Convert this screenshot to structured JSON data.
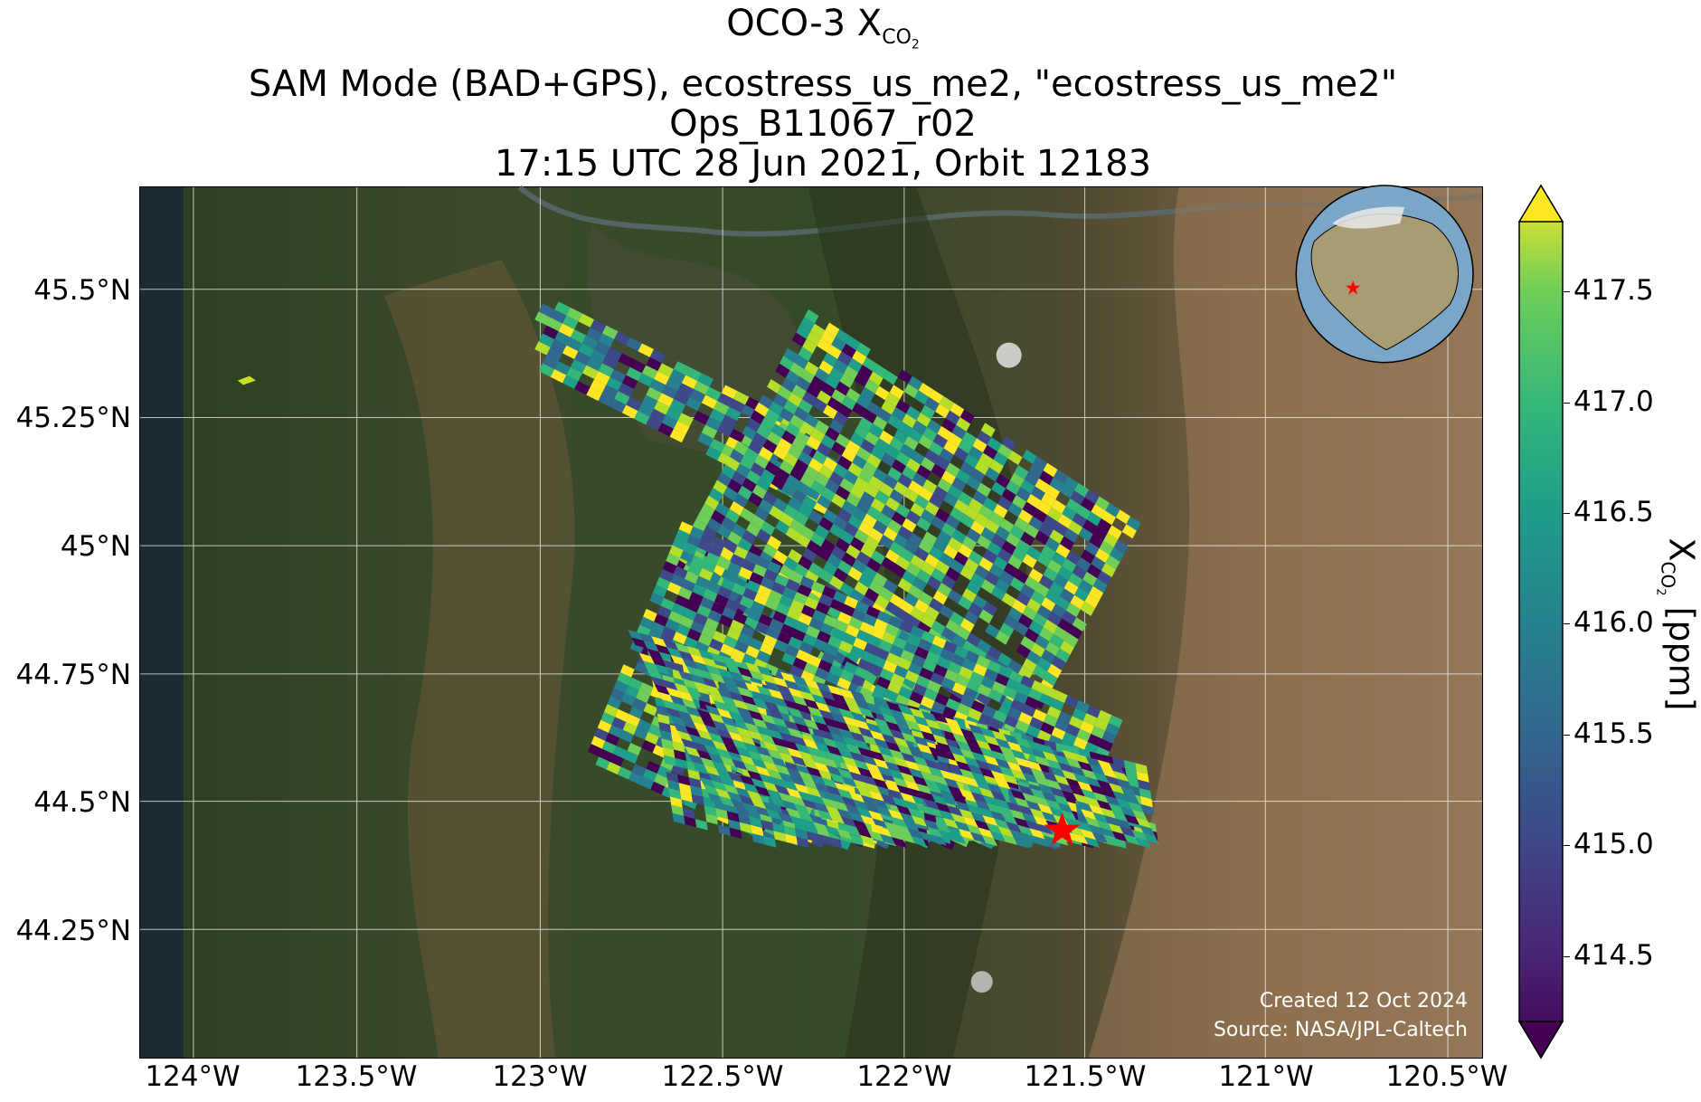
{
  "title": {
    "line1_main": "OCO-3 X",
    "line1_sub": "CO",
    "line1_sub2": "2",
    "line2": "SAM Mode (BAD+GPS), ecostress_us_me2, \"ecostress_us_me2\"",
    "line3": "Ops_B11067_r02",
    "line4": "17:15 UTC 28 Jun 2021, Orbit 12183"
  },
  "map": {
    "lat_labels": [
      "45.5°N",
      "45.25°N",
      "45°N",
      "44.75°N",
      "44.5°N",
      "44.25°N"
    ],
    "lon_labels": [
      "124°W",
      "123.5°W",
      "123°W",
      "122.5°W",
      "122°W",
      "121.5°W",
      "121°W",
      "120.5°W"
    ],
    "target_marker": "red-star",
    "target_marker_color": "#ff0000",
    "inset": "globe-locator",
    "credit_line1": "Created 12 Oct 2024",
    "credit_line2": "Source: NASA/JPL-Caltech"
  },
  "colorbar": {
    "label_main": "X",
    "label_sub": "CO",
    "label_sub2": "2",
    "label_unit": " [ppm]",
    "colormap": "viridis",
    "ticks": [
      "414.5",
      "415.0",
      "415.5",
      "416.0",
      "416.5",
      "417.0",
      "417.5"
    ],
    "min": 414.1,
    "max": 417.8,
    "extend": "both"
  }
}
